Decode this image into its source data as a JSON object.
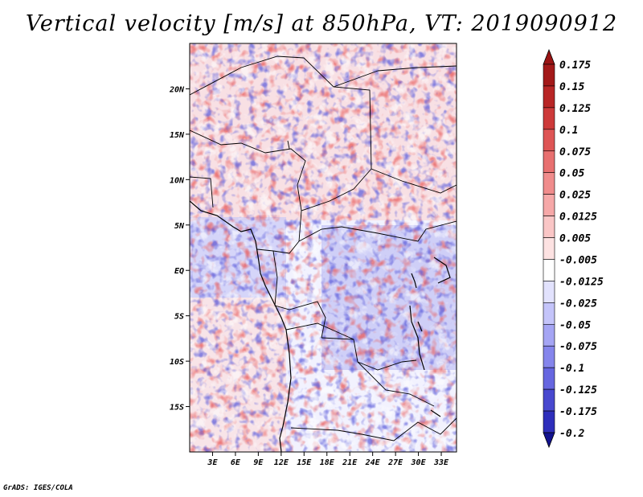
{
  "title": "Vertical velocity [m/s] at 850hPa, VT: 2019090912",
  "credit": "GrADS: IGES/COLA",
  "map": {
    "lat_range": [
      -20,
      25
    ],
    "lon_range": [
      0,
      35
    ],
    "lat_ticks": [
      {
        "lat": 20,
        "label": "20N"
      },
      {
        "lat": 15,
        "label": "15N"
      },
      {
        "lat": 10,
        "label": "10N"
      },
      {
        "lat": 5,
        "label": "5N"
      },
      {
        "lat": 0,
        "label": "EQ"
      },
      {
        "lat": -5,
        "label": "5S"
      },
      {
        "lat": -10,
        "label": "10S"
      },
      {
        "lat": -15,
        "label": "15S"
      }
    ],
    "lon_ticks": [
      {
        "lon": 3,
        "label": "3E"
      },
      {
        "lon": 6,
        "label": "6E"
      },
      {
        "lon": 9,
        "label": "9E"
      },
      {
        "lon": 12,
        "label": "12E"
      },
      {
        "lon": 15,
        "label": "15E"
      },
      {
        "lon": 18,
        "label": "18E"
      },
      {
        "lon": 21,
        "label": "21E"
      },
      {
        "lon": 24,
        "label": "24E"
      },
      {
        "lon": 27,
        "label": "27E"
      },
      {
        "lon": 30,
        "label": "30E"
      },
      {
        "lon": 33,
        "label": "33E"
      }
    ]
  },
  "colorbar": {
    "levels": [
      {
        "label": "0.175",
        "color": "#a31919"
      },
      {
        "label": "0.15",
        "color": "#b82626"
      },
      {
        "label": "0.125",
        "color": "#cd3a3a"
      },
      {
        "label": "0.1",
        "color": "#de5555"
      },
      {
        "label": "0.075",
        "color": "#e87070"
      },
      {
        "label": "0.05",
        "color": "#f08c8c"
      },
      {
        "label": "0.025",
        "color": "#f6a8a8"
      },
      {
        "label": "0.0125",
        "color": "#fac6c6"
      },
      {
        "label": "0.005",
        "color": "#fde2e2"
      },
      {
        "label": "-0.005",
        "color": "#ffffff"
      },
      {
        "label": "-0.0125",
        "color": "#e2e2fd"
      },
      {
        "label": "-0.025",
        "color": "#c4c4fa"
      },
      {
        "label": "-0.05",
        "color": "#a5a5f4"
      },
      {
        "label": "-0.075",
        "color": "#8585ec"
      },
      {
        "label": "-0.1",
        "color": "#6666e0"
      },
      {
        "label": "-0.125",
        "color": "#4848cf"
      },
      {
        "label": "-0.175",
        "color": "#2e2ebb"
      },
      {
        "label": "-0.2",
        "color": "#1a1aa0"
      }
    ],
    "top_color": "#9a1414",
    "bottom_color": "#12128f"
  }
}
